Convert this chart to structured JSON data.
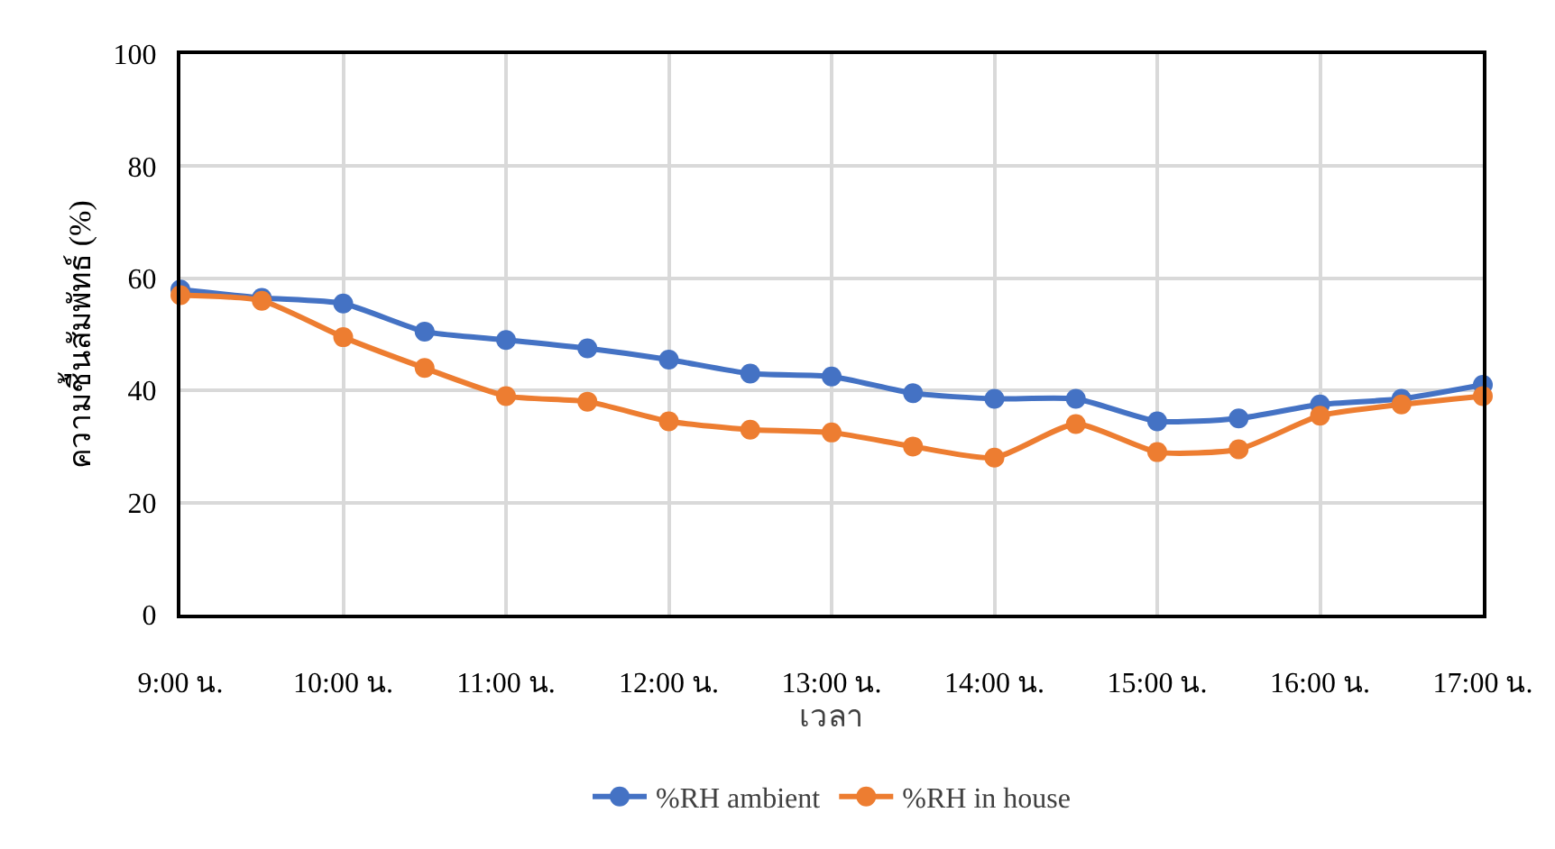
{
  "chart_data": {
    "type": "line",
    "xlabel": "เวลา",
    "ylabel": "ความชื้นสัมพัทธ์ (%)",
    "categories": [
      "9:00 น.",
      null,
      "10:00 น.",
      null,
      "11:00 น.",
      null,
      "12:00 น.",
      null,
      "13:00 น.",
      null,
      "14:00 น.",
      null,
      "15:00 น.",
      null,
      "16:00 น.",
      null,
      "17:00 น."
    ],
    "series": [
      {
        "name": "%RH ambient",
        "color": "#4472c4",
        "values": [
          58,
          56.5,
          55.5,
          50.5,
          49,
          47.5,
          45.5,
          43,
          42.5,
          39.5,
          38.5,
          38.5,
          34.5,
          35,
          37.5,
          38.5,
          41
        ]
      },
      {
        "name": "%RH in house",
        "color": "#ed7d31",
        "values": [
          57,
          56,
          49.5,
          44,
          39,
          38,
          34.5,
          33,
          32.5,
          30,
          28,
          34,
          29,
          29.5,
          35.5,
          37.5,
          39
        ]
      }
    ],
    "ylim": [
      0,
      100
    ],
    "yticks": [
      0,
      20,
      40,
      60,
      80,
      100
    ],
    "grid": true,
    "legend": "bottom",
    "marker": "circle",
    "line_style": "solid"
  }
}
